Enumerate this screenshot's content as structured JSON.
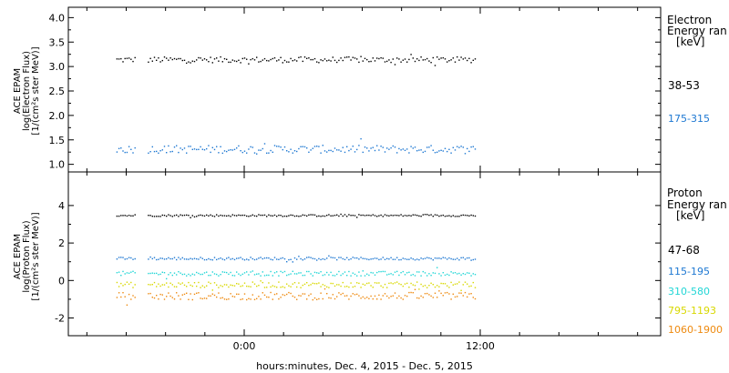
{
  "colors": {
    "black": "#000000",
    "blue": "#1e78d2",
    "cyan": "#22d6d6",
    "yellow": "#d8d800",
    "orange": "#ee8a10"
  },
  "chart_data": [
    {
      "type": "scatter",
      "panel": "electron",
      "ylabel_lines": [
        "ACE EPAM",
        "log(Electron Flux)",
        "[1/(cm²s ster MeV)]"
      ],
      "ylim": [
        0.9,
        4.1
      ],
      "yticks": [
        "4.0",
        "3.5",
        "3.0",
        "2.5",
        "2.0",
        "1.5",
        "1.0"
      ],
      "ytick_values": [
        4.0,
        3.5,
        3.0,
        2.5,
        2.0,
        1.5,
        1.0
      ],
      "legend_title": [
        "Electron",
        "Energy ran"
      ],
      "legend_unit": "[keV]",
      "series": [
        {
          "name": "38-53",
          "color": "#000000",
          "level": 3.15,
          "spread": 0.06
        },
        {
          "name": "175-315",
          "color": "#1e78d2",
          "level": 1.32,
          "spread": 0.08
        }
      ]
    },
    {
      "type": "scatter",
      "panel": "proton",
      "ylabel_lines": [
        "ACE EPAM",
        "log(Proton Flux)",
        "[1/(cm²s ster MeV)]"
      ],
      "ylim": [
        -2.8,
        5.5
      ],
      "yticks": [
        "4",
        "2",
        "0",
        "-2"
      ],
      "ytick_values": [
        4,
        2,
        0,
        -2
      ],
      "legend_title": [
        "Proton",
        "Energy ran"
      ],
      "legend_unit": "[keV]",
      "series": [
        {
          "name": "47-68",
          "color": "#000000",
          "level": 3.5,
          "spread": 0.05
        },
        {
          "name": "115-195",
          "color": "#1e78d2",
          "level": 1.2,
          "spread": 0.07
        },
        {
          "name": "310-580",
          "color": "#22d6d6",
          "level": 0.4,
          "spread": 0.12
        },
        {
          "name": "795-1193",
          "color": "#d8d800",
          "level": -0.2,
          "spread": 0.15
        },
        {
          "name": "1060-1900",
          "color": "#ee8a10",
          "level": -0.8,
          "spread": 0.2
        }
      ]
    }
  ],
  "x_axis": {
    "tick_labels": [
      "0:00",
      "12:00"
    ],
    "xlabel": "hours:minutes, Dec.  4, 2015 - Dec.  5, 2015"
  }
}
